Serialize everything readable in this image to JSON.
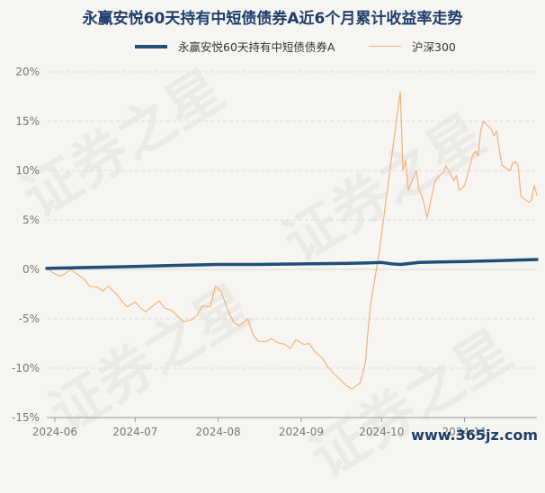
{
  "chart_data": {
    "type": "line",
    "title": "永赢安悦60天持有中短债债券A近6个月累计收益率走势",
    "xlabel": "",
    "ylabel": "",
    "ylim": [
      -15,
      20
    ],
    "yticks": [
      20,
      15,
      10,
      5,
      0,
      -5,
      -10,
      -15
    ],
    "ytick_labels": [
      "20%",
      "15%",
      "10%",
      "5%",
      "0%",
      "-5%",
      "-10%",
      "-15%"
    ],
    "xlim": [
      "2024-05-29",
      "2024-11-28"
    ],
    "xticks": [
      "2024-06-01",
      "2024-07-01",
      "2024-08-01",
      "2024-09-01",
      "2024-10-01",
      "2024-11-01"
    ],
    "xtick_labels": [
      "2024-06",
      "2024-07",
      "2024-08",
      "2024-09",
      "2024-10",
      "2024-11"
    ],
    "grid": true,
    "legend_position": "top",
    "series": [
      {
        "name": "永赢安悦60天持有中短债债券A",
        "color": "#1f4e79",
        "points": [
          [
            "2024-05-29",
            0.1
          ],
          [
            "2024-06-15",
            0.2
          ],
          [
            "2024-07-01",
            0.3
          ],
          [
            "2024-07-15",
            0.4
          ],
          [
            "2024-08-01",
            0.5
          ],
          [
            "2024-08-15",
            0.5
          ],
          [
            "2024-09-01",
            0.55
          ],
          [
            "2024-09-15",
            0.6
          ],
          [
            "2024-09-25",
            0.65
          ],
          [
            "2024-10-01",
            0.7
          ],
          [
            "2024-10-05",
            0.55
          ],
          [
            "2024-10-08",
            0.5
          ],
          [
            "2024-10-15",
            0.7
          ],
          [
            "2024-10-22",
            0.75
          ],
          [
            "2024-11-01",
            0.8
          ],
          [
            "2024-11-15",
            0.9
          ],
          [
            "2024-11-28",
            1.0
          ]
        ]
      },
      {
        "name": "沪深300",
        "color": "#f0b27a",
        "points": [
          [
            "2024-05-29",
            0.2
          ],
          [
            "2024-05-31",
            -0.3
          ],
          [
            "2024-06-03",
            -0.7
          ],
          [
            "2024-06-05",
            -0.4
          ],
          [
            "2024-06-07",
            0.0
          ],
          [
            "2024-06-10",
            -0.6
          ],
          [
            "2024-06-12",
            -1.0
          ],
          [
            "2024-06-14",
            -1.7
          ],
          [
            "2024-06-17",
            -1.8
          ],
          [
            "2024-06-19",
            -2.2
          ],
          [
            "2024-06-21",
            -1.7
          ],
          [
            "2024-06-24",
            -2.5
          ],
          [
            "2024-06-26",
            -3.2
          ],
          [
            "2024-06-28",
            -3.8
          ],
          [
            "2024-07-01",
            -3.3
          ],
          [
            "2024-07-03",
            -3.9
          ],
          [
            "2024-07-05",
            -4.3
          ],
          [
            "2024-07-08",
            -3.6
          ],
          [
            "2024-07-10",
            -3.2
          ],
          [
            "2024-07-12",
            -3.9
          ],
          [
            "2024-07-15",
            -4.2
          ],
          [
            "2024-07-17",
            -4.8
          ],
          [
            "2024-07-19",
            -5.3
          ],
          [
            "2024-07-22",
            -5.1
          ],
          [
            "2024-07-24",
            -4.7
          ],
          [
            "2024-07-26",
            -3.7
          ],
          [
            "2024-07-29",
            -3.8
          ],
          [
            "2024-07-31",
            -1.7
          ],
          [
            "2024-08-02",
            -2.2
          ],
          [
            "2024-08-05",
            -4.4
          ],
          [
            "2024-08-07",
            -5.4
          ],
          [
            "2024-08-09",
            -5.7
          ],
          [
            "2024-08-12",
            -5.0
          ],
          [
            "2024-08-14",
            -6.6
          ],
          [
            "2024-08-16",
            -7.3
          ],
          [
            "2024-08-19",
            -7.3
          ],
          [
            "2024-08-21",
            -7.0
          ],
          [
            "2024-08-23",
            -7.4
          ],
          [
            "2024-08-26",
            -7.6
          ],
          [
            "2024-08-28",
            -8.0
          ],
          [
            "2024-08-30",
            -7.1
          ],
          [
            "2024-09-02",
            -7.6
          ],
          [
            "2024-09-04",
            -7.5
          ],
          [
            "2024-09-06",
            -8.3
          ],
          [
            "2024-09-09",
            -9.0
          ],
          [
            "2024-09-11",
            -9.9
          ],
          [
            "2024-09-13",
            -10.5
          ],
          [
            "2024-09-18",
            -11.8
          ],
          [
            "2024-09-20",
            -12.1
          ],
          [
            "2024-09-23",
            -11.5
          ],
          [
            "2024-09-25",
            -9.4
          ],
          [
            "2024-09-26",
            -6.0
          ],
          [
            "2024-09-27",
            -3.3
          ],
          [
            "2024-09-30",
            1.5
          ],
          [
            "2024-10-08",
            18.0
          ],
          [
            "2024-10-09",
            10.0
          ],
          [
            "2024-10-10",
            11.0
          ],
          [
            "2024-10-11",
            8.0
          ],
          [
            "2024-10-14",
            10.0
          ],
          [
            "2024-10-15",
            8.0
          ],
          [
            "2024-10-16",
            7.5
          ],
          [
            "2024-10-17",
            6.5
          ],
          [
            "2024-10-18",
            5.2
          ],
          [
            "2024-10-21",
            9.0
          ],
          [
            "2024-10-22",
            9.3
          ],
          [
            "2024-10-24",
            9.8
          ],
          [
            "2024-10-25",
            10.5
          ],
          [
            "2024-10-28",
            9.0
          ],
          [
            "2024-10-29",
            9.5
          ],
          [
            "2024-10-30",
            8.0
          ],
          [
            "2024-10-31",
            8.2
          ],
          [
            "2024-11-01",
            8.5
          ],
          [
            "2024-11-04",
            11.5
          ],
          [
            "2024-11-05",
            12.0
          ],
          [
            "2024-11-06",
            11.5
          ],
          [
            "2024-11-07",
            14.0
          ],
          [
            "2024-11-08",
            15.0
          ],
          [
            "2024-11-11",
            14.2
          ],
          [
            "2024-11-12",
            13.5
          ],
          [
            "2024-11-13",
            14.0
          ],
          [
            "2024-11-14",
            12.0
          ],
          [
            "2024-11-15",
            10.5
          ],
          [
            "2024-11-18",
            10.0
          ],
          [
            "2024-11-19",
            10.8
          ],
          [
            "2024-11-20",
            10.9
          ],
          [
            "2024-11-21",
            10.5
          ],
          [
            "2024-11-22",
            7.4
          ],
          [
            "2024-11-25",
            6.8
          ],
          [
            "2024-11-26",
            7.0
          ],
          [
            "2024-11-27",
            8.5
          ],
          [
            "2024-11-28",
            7.5
          ]
        ]
      }
    ]
  },
  "watermark": {
    "text": "证券之星"
  },
  "site_mark": {
    "text": "www.365jz.com"
  }
}
